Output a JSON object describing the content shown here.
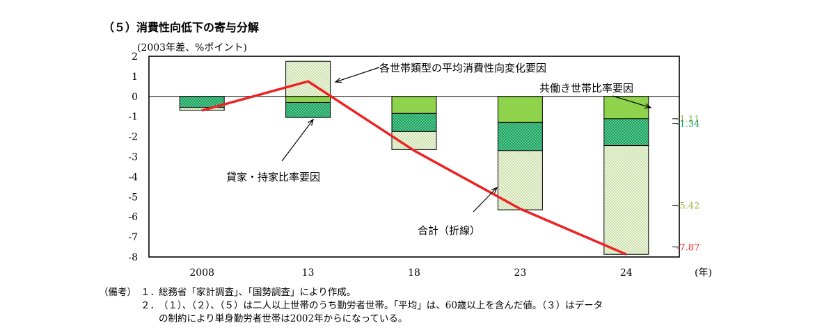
{
  "title": "（５）消費性向低下の寄与分解",
  "unit_label": "(2003年差、%ポイント)",
  "chart_data": {
    "type": "bar",
    "stacked": true,
    "categories": [
      "2008",
      "13",
      "18",
      "23",
      "24"
    ],
    "x_unit": "(年)",
    "ylim": [
      -8,
      2
    ],
    "yticks": [
      "2",
      "1",
      "0",
      "-1",
      "-2",
      "-3",
      "-4",
      "-5",
      "-6",
      "-7",
      "-8"
    ],
    "series": [
      {
        "name": "共働き世帯比率要因",
        "values": [
          0.0,
          -0.3,
          -0.85,
          -1.3,
          -1.11
        ],
        "color": "#8fd24b"
      },
      {
        "name": "貸家・持家比率要因",
        "values": [
          -0.55,
          -0.75,
          -0.9,
          -1.4,
          -1.34
        ],
        "color": "#18a060"
      },
      {
        "name": "各世帯類型の平均消費性向変化要因",
        "values": [
          -0.15,
          1.75,
          -0.9,
          -2.95,
          -5.42
        ],
        "color": "#cfe3a8"
      }
    ],
    "total": {
      "name": "合計（折線）",
      "values": [
        -0.7,
        0.75,
        -2.7,
        -5.6,
        -7.87
      ],
      "color": "#ee2222"
    },
    "value_labels": [
      {
        "text": "-1.11",
        "value": -1.11,
        "color": "#9ab84a"
      },
      {
        "text": "-1.34",
        "value": -1.34,
        "color": "#18a060"
      },
      {
        "text": "-5.42",
        "value": -5.42,
        "color": "#9ab84a"
      },
      {
        "text": "-7.87",
        "value": -7.87,
        "color": "#ee2222"
      }
    ],
    "annotations": {
      "avg_change": "各世帯類型の平均消費性向変化要因",
      "dual_income": "共働き世帯比率要因",
      "rental": "貸家・持家比率要因",
      "total": "合計（折線）"
    },
    "grid": false
  },
  "notes": {
    "heading": "（備考）",
    "items": [
      {
        "num": "１．",
        "text": "総務省「家計調査」、「国勢調査」により作成。"
      },
      {
        "num": "２．",
        "text": "（１）、（２）、（５）は二人以上世帯のうち勤労者世帯。「平均」は、60歳以上を含んだ値。（３）はデータ",
        "cont": "の制約により単身勤労者世帯は2002年からになっている。"
      }
    ]
  }
}
